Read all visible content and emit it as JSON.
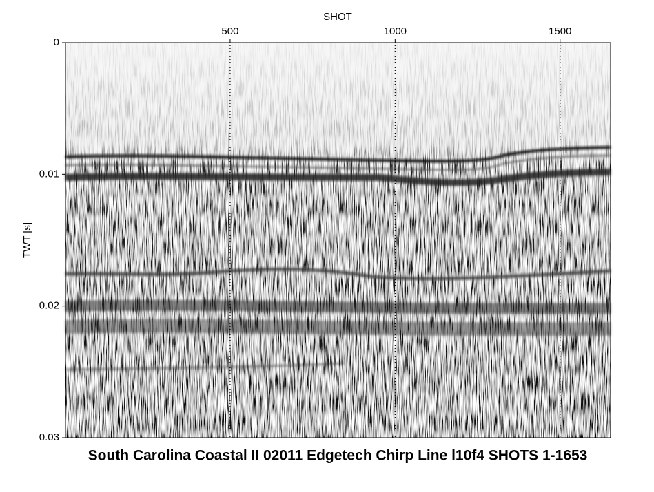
{
  "chart_data": {
    "type": "seismic",
    "title": "South Carolina Coastal II 02011 Edgetech Chirp Line l10f4 SHOTS 1-1653",
    "x_label": "SHOT",
    "y_label": "TWT [s]",
    "xlim": [
      1,
      1653
    ],
    "xticks": [
      500,
      1000,
      1500
    ],
    "ylim": [
      0,
      0.03
    ],
    "yticks": [
      0,
      0.01,
      0.02,
      0.03
    ],
    "y_inverted": true,
    "x_axis_position": "top",
    "xgrid": true
  }
}
